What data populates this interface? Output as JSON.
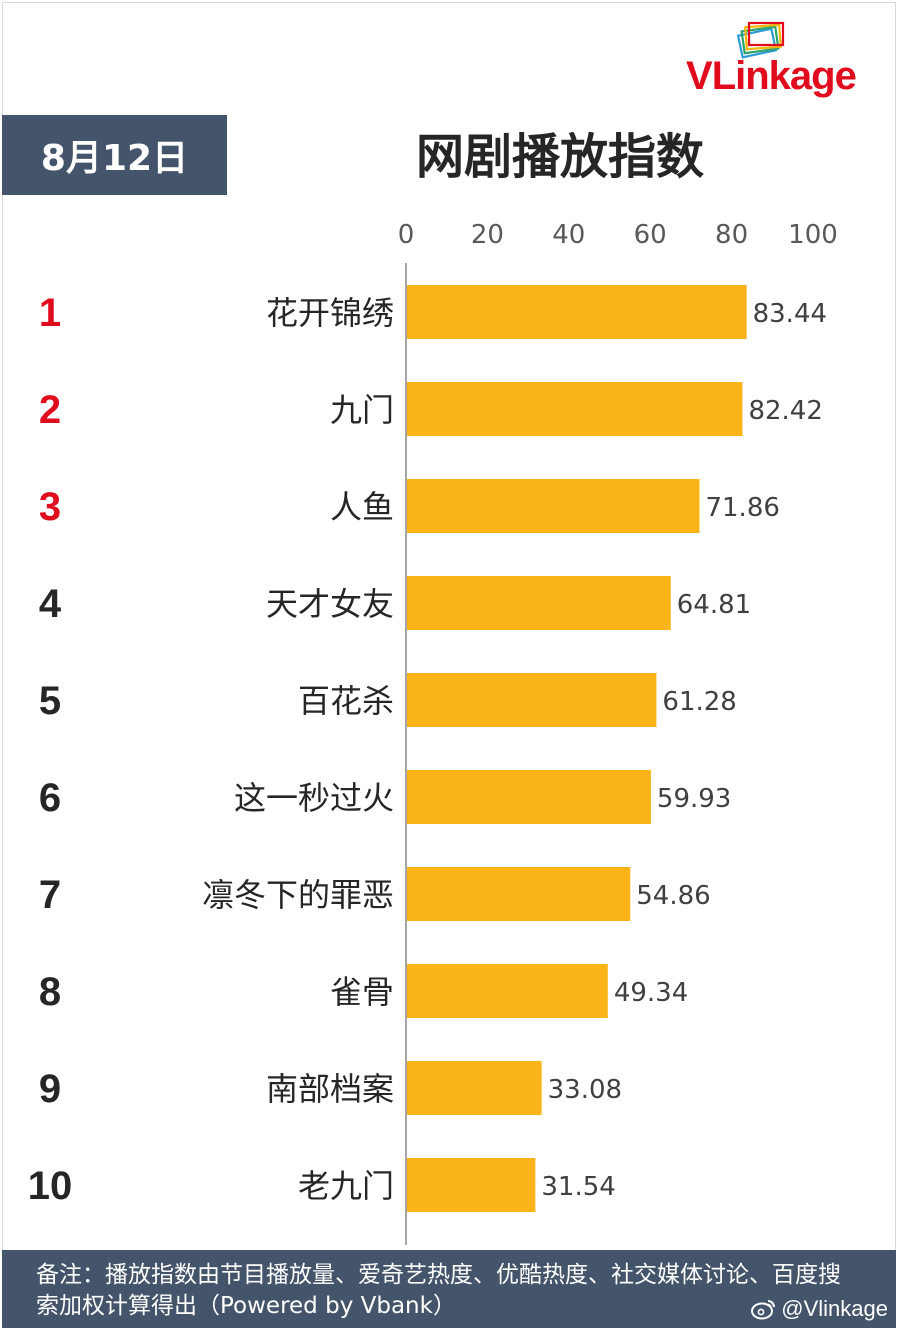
{
  "brand": {
    "logo_text_v": "V",
    "logo_text_l": "L",
    "logo_text_rest": "ink",
    "logo_text_age": "age"
  },
  "header": {
    "date": "8月12日",
    "title": "网剧播放指数"
  },
  "chart_data": {
    "type": "bar",
    "orientation": "horizontal",
    "ranks": [
      "1",
      "2",
      "3",
      "4",
      "5",
      "6",
      "7",
      "8",
      "9",
      "10"
    ],
    "categories": [
      "花开锦绣",
      "九门",
      "人鱼",
      "天才女友",
      "百花杀",
      "这一秒过火",
      "凛冬下的罪恶",
      "雀骨",
      "南部档案",
      "老九门"
    ],
    "values": [
      83.44,
      82.42,
      71.86,
      64.81,
      61.28,
      59.93,
      54.86,
      49.34,
      33.08,
      31.54
    ],
    "value_labels": [
      "83.44",
      "82.42",
      "71.86",
      "64.81",
      "61.28",
      "59.93",
      "54.86",
      "49.34",
      "33.08",
      "31.54"
    ],
    "xlim": [
      0,
      100
    ],
    "xticks": [
      "0",
      "20",
      "40",
      "60",
      "80",
      "100"
    ],
    "axis_position": "top",
    "grid": false,
    "bar_color": "#fbb31a",
    "top_rank_color": "#e00b1c",
    "rank_color": "#262626"
  },
  "footer": {
    "note": "备注：播放指数由节目播放量、爱奇艺热度、优酷热度、社交媒体讨论、百度搜索加权计算得出（Powered by Vbank）",
    "weibo_handle": "@Vlinkage"
  },
  "colors": {
    "header_bg": "#44546a",
    "brand_red": "#e00b1c"
  }
}
